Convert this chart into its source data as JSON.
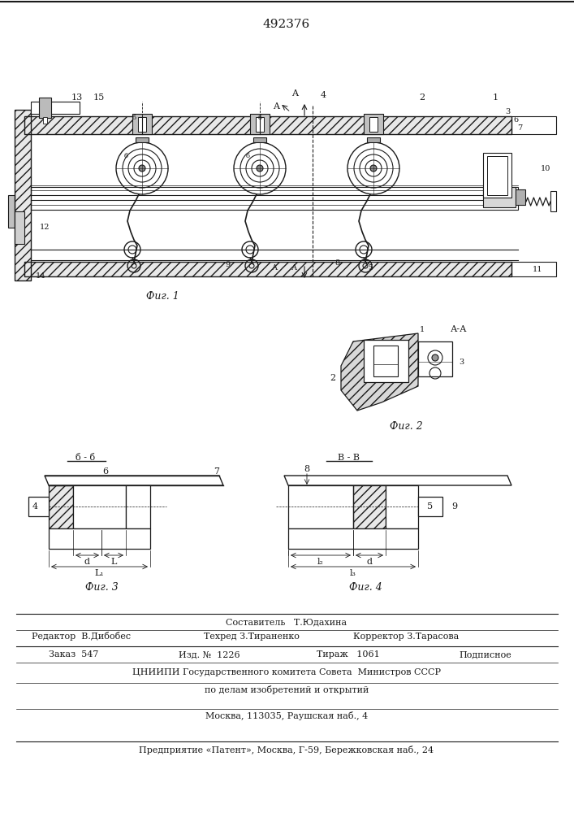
{
  "patent_number": "492376",
  "background_color": "#ffffff",
  "line_color": "#1a1a1a",
  "fig_width": 7.07,
  "fig_height": 10.0,
  "dpi": 100,
  "footer": {
    "sostavitel": "Составитель   Т.Юдахина",
    "redaktor": "Редактор  В.Дибобес",
    "tekhred": "Техред З.Тираненко",
    "korrektor": "Корректор З.Тарасова",
    "zakaz": "Заказ  547",
    "izd": "Изд. №  1226",
    "tirazh": "Тираж   1061",
    "podpisnoe": "Подписное",
    "tsniipи": "ЦНИИПИ Государственного комитета Совета  Министров СССР",
    "po_delam": "по делам изобретений и открытий",
    "moskva": "Москва, 113035, Раушская наб., 4",
    "predpriyatie": "Предприятие «Патент», Москва, Г-59, Бережковская наб., 24"
  }
}
